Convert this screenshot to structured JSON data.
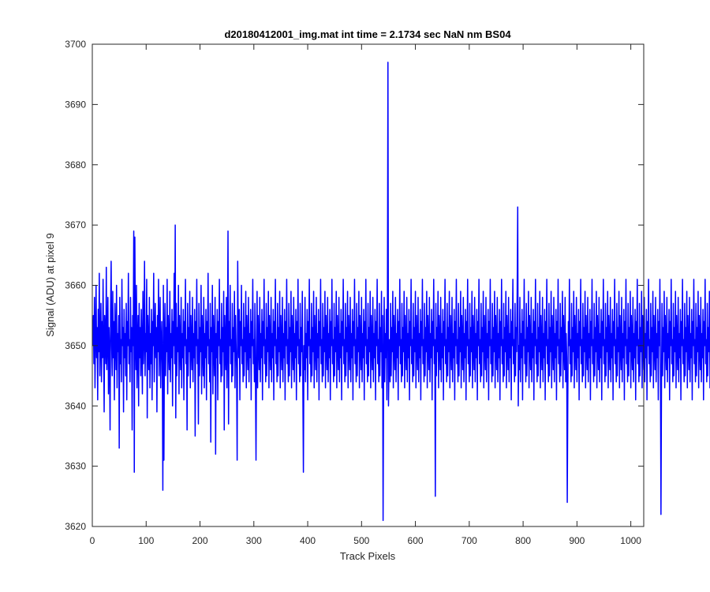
{
  "chart_data": {
    "type": "line",
    "title": "d20180412001_img.mat int time = 2.1734 sec  NaN nm BS04",
    "xlabel": "Track Pixels",
    "ylabel": "Signal (ADU) at pixel 9",
    "xlim": [
      0,
      1024
    ],
    "ylim": [
      3620,
      3700
    ],
    "xticks": [
      0,
      100,
      200,
      300,
      400,
      500,
      600,
      700,
      800,
      900,
      1000
    ],
    "yticks": [
      3620,
      3630,
      3640,
      3650,
      3660,
      3670,
      3680,
      3690,
      3700
    ],
    "grid": false,
    "legend": "none",
    "series_color": "#0000ff",
    "series": [
      {
        "x_start": 1,
        "x_step": 1,
        "values": [
          3650,
          3655,
          3647,
          3658,
          3643,
          3652,
          3660,
          3648,
          3653,
          3641,
          3656,
          3649,
          3662,
          3645,
          3651,
          3657,
          3644,
          3654,
          3648,
          3661,
          3650,
          3639,
          3655,
          3652,
          3647,
          3663,
          3646,
          3651,
          3658,
          3642,
          3653,
          3649,
          3636,
          3656,
          3664,
          3650,
          3645,
          3659,
          3648,
          3654,
          3641,
          3657,
          3651,
          3646,
          3660,
          3643,
          3652,
          3649,
          3655,
          3633,
          3658,
          3647,
          3651,
          3644,
          3661,
          3650,
          3653,
          3639,
          3656,
          3648,
          3652,
          3645,
          3657,
          3641,
          3654,
          3650,
          3662,
          3647,
          3651,
          3644,
          3658,
          3649,
          3653,
          3636,
          3655,
          3650,
          3669,
          3629,
          3668,
          3652,
          3646,
          3660,
          3643,
          3651,
          3655,
          3640,
          3657,
          3648,
          3653,
          3645,
          3656,
          3650,
          3642,
          3659,
          3647,
          3651,
          3664,
          3645,
          3652,
          3649,
          3661,
          3638,
          3655,
          3650,
          3646,
          3658,
          3643,
          3652,
          3647,
          3656,
          3641,
          3654,
          3650,
          3662,
          3644,
          3651,
          3657,
          3648,
          3653,
          3639,
          3655,
          3649,
          3661,
          3645,
          3652,
          3658,
          3643,
          3650,
          3654,
          3647,
          3626,
          3660,
          3631,
          3651,
          3657,
          3645,
          3653,
          3649,
          3661,
          3642,
          3655,
          3650,
          3646,
          3659,
          3644,
          3652,
          3648,
          3656,
          3640,
          3654,
          3650,
          3662,
          3647,
          3670,
          3638,
          3657,
          3645,
          3653,
          3649,
          3660,
          3642,
          3655,
          3650,
          3646,
          3658,
          3643,
          3652,
          3648,
          3656,
          3641,
          3654,
          3650,
          3661,
          3647,
          3651,
          3636,
          3657,
          3645,
          3653,
          3649,
          3659,
          3643,
          3655,
          3650,
          3646,
          3658,
          3644,
          3652,
          3648,
          3656,
          3635,
          3654,
          3650,
          3661,
          3647,
          3651,
          3637,
          3657,
          3645,
          3653,
          3649,
          3660,
          3642,
          3655,
          3650,
          3645,
          3658,
          3643,
          3652,
          3648,
          3656,
          3641,
          3654,
          3650,
          3662,
          3647,
          3651,
          3644,
          3657,
          3634,
          3653,
          3649,
          3660,
          3642,
          3655,
          3650,
          3645,
          3658,
          3632,
          3652,
          3648,
          3656,
          3641,
          3654,
          3650,
          3661,
          3647,
          3651,
          3644,
          3657,
          3645,
          3653,
          3649,
          3659,
          3636,
          3655,
          3650,
          3646,
          3658,
          3643,
          3652,
          3669,
          3637,
          3654,
          3650,
          3660,
          3647,
          3651,
          3644,
          3657,
          3645,
          3653,
          3649,
          3659,
          3643,
          3655,
          3650,
          3646,
          3631,
          3664,
          3652,
          3648,
          3656,
          3641,
          3654,
          3650,
          3660,
          3647,
          3651,
          3644,
          3657,
          3645,
          3653,
          3649,
          3659,
          3643,
          3655,
          3650,
          3646,
          3658,
          3644,
          3652,
          3648,
          3656,
          3641,
          3654,
          3650,
          3661,
          3647,
          3651,
          3644,
          3657,
          3645,
          3631,
          3649,
          3659,
          3643,
          3655,
          3650,
          3646,
          3658,
          3644,
          3652,
          3648,
          3656,
          3641,
          3654,
          3650,
          3661,
          3647,
          3651,
          3644,
          3657,
          3645,
          3653,
          3649,
          3659,
          3643,
          3655,
          3650,
          3646,
          3658,
          3644,
          3652,
          3648,
          3656,
          3641,
          3654,
          3650,
          3661,
          3647,
          3651,
          3644,
          3657,
          3645,
          3653,
          3649,
          3659,
          3643,
          3655,
          3650,
          3646,
          3658,
          3644,
          3652,
          3648,
          3656,
          3641,
          3654,
          3650,
          3661,
          3647,
          3651,
          3644,
          3657,
          3645,
          3653,
          3649,
          3659,
          3643,
          3655,
          3650,
          3646,
          3658,
          3644,
          3652,
          3648,
          3656,
          3641,
          3654,
          3650,
          3661,
          3647,
          3651,
          3644,
          3657,
          3645,
          3653,
          3649,
          3659,
          3643,
          3629,
          3650,
          3646,
          3658,
          3644,
          3652,
          3648,
          3656,
          3641,
          3654,
          3650,
          3661,
          3647,
          3651,
          3644,
          3657,
          3645,
          3653,
          3649,
          3659,
          3643,
          3655,
          3650,
          3646,
          3658,
          3644,
          3652,
          3648,
          3656,
          3641,
          3654,
          3650,
          3661,
          3647,
          3651,
          3644,
          3657,
          3645,
          3653,
          3649,
          3659,
          3643,
          3655,
          3650,
          3646,
          3658,
          3644,
          3652,
          3648,
          3656,
          3641,
          3654,
          3650,
          3661,
          3647,
          3651,
          3644,
          3657,
          3645,
          3653,
          3649,
          3659,
          3643,
          3655,
          3650,
          3646,
          3658,
          3644,
          3652,
          3648,
          3656,
          3641,
          3654,
          3650,
          3661,
          3647,
          3651,
          3644,
          3657,
          3645,
          3653,
          3649,
          3659,
          3643,
          3655,
          3650,
          3646,
          3658,
          3644,
          3652,
          3648,
          3656,
          3641,
          3654,
          3650,
          3661,
          3647,
          3651,
          3644,
          3657,
          3645,
          3653,
          3649,
          3659,
          3643,
          3655,
          3650,
          3646,
          3658,
          3644,
          3652,
          3648,
          3656,
          3641,
          3654,
          3650,
          3661,
          3647,
          3651,
          3644,
          3657,
          3645,
          3653,
          3649,
          3659,
          3643,
          3655,
          3650,
          3646,
          3658,
          3644,
          3652,
          3648,
          3656,
          3641,
          3654,
          3650,
          3661,
          3647,
          3651,
          3644,
          3657,
          3645,
          3653,
          3649,
          3659,
          3643,
          3655,
          3621,
          3646,
          3658,
          3644,
          3652,
          3648,
          3656,
          3641,
          3654,
          3697,
          3640,
          3647,
          3651,
          3644,
          3657,
          3645,
          3653,
          3649,
          3659,
          3643,
          3655,
          3650,
          3646,
          3658,
          3644,
          3652,
          3648,
          3656,
          3641,
          3654,
          3650,
          3661,
          3647,
          3651,
          3644,
          3657,
          3645,
          3653,
          3649,
          3659,
          3643,
          3655,
          3650,
          3646,
          3658,
          3644,
          3652,
          3648,
          3656,
          3641,
          3654,
          3650,
          3661,
          3647,
          3651,
          3644,
          3657,
          3645,
          3653,
          3649,
          3659,
          3643,
          3655,
          3650,
          3646,
          3658,
          3644,
          3652,
          3648,
          3656,
          3641,
          3654,
          3650,
          3661,
          3647,
          3651,
          3644,
          3657,
          3645,
          3653,
          3649,
          3659,
          3643,
          3655,
          3650,
          3646,
          3658,
          3644,
          3652,
          3648,
          3656,
          3641,
          3654,
          3650,
          3661,
          3647,
          3651,
          3625,
          3657,
          3645,
          3653,
          3649,
          3659,
          3643,
          3655,
          3650,
          3646,
          3658,
          3644,
          3652,
          3648,
          3656,
          3641,
          3654,
          3650,
          3661,
          3647,
          3651,
          3644,
          3657,
          3645,
          3653,
          3649,
          3659,
          3643,
          3655,
          3650,
          3646,
          3658,
          3644,
          3652,
          3648,
          3656,
          3641,
          3654,
          3650,
          3661,
          3647,
          3651,
          3644,
          3657,
          3645,
          3653,
          3649,
          3659,
          3643,
          3655,
          3650,
          3646,
          3658,
          3644,
          3652,
          3648,
          3656,
          3641,
          3654,
          3650,
          3661,
          3647,
          3651,
          3644,
          3657,
          3645,
          3653,
          3649,
          3659,
          3643,
          3655,
          3650,
          3646,
          3658,
          3644,
          3652,
          3648,
          3656,
          3641,
          3654,
          3650,
          3661,
          3647,
          3651,
          3644,
          3657,
          3645,
          3653,
          3649,
          3659,
          3643,
          3655,
          3650,
          3646,
          3658,
          3644,
          3652,
          3648,
          3656,
          3641,
          3654,
          3650,
          3661,
          3647,
          3651,
          3644,
          3657,
          3645,
          3653,
          3649,
          3659,
          3643,
          3655,
          3650,
          3646,
          3658,
          3644,
          3652,
          3648,
          3656,
          3641,
          3654,
          3650,
          3661,
          3647,
          3651,
          3644,
          3657,
          3645,
          3653,
          3649,
          3659,
          3643,
          3655,
          3650,
          3646,
          3658,
          3644,
          3652,
          3648,
          3656,
          3641,
          3654,
          3650,
          3661,
          3647,
          3651,
          3644,
          3657,
          3645,
          3653,
          3649,
          3659,
          3673,
          3640,
          3650,
          3646,
          3658,
          3644,
          3652,
          3648,
          3656,
          3641,
          3654,
          3650,
          3661,
          3647,
          3651,
          3644,
          3657,
          3645,
          3653,
          3649,
          3659,
          3643,
          3655,
          3650,
          3646,
          3658,
          3644,
          3652,
          3648,
          3656,
          3641,
          3654,
          3650,
          3661,
          3647,
          3651,
          3644,
          3657,
          3645,
          3653,
          3649,
          3659,
          3643,
          3655,
          3650,
          3646,
          3658,
          3644,
          3652,
          3648,
          3656,
          3641,
          3654,
          3650,
          3661,
          3647,
          3651,
          3644,
          3657,
          3645,
          3653,
          3649,
          3659,
          3643,
          3655,
          3650,
          3646,
          3658,
          3644,
          3652,
          3648,
          3656,
          3641,
          3654,
          3650,
          3661,
          3647,
          3651,
          3644,
          3657,
          3645,
          3653,
          3649,
          3659,
          3643,
          3655,
          3650,
          3646,
          3658,
          3644,
          3652,
          3648,
          3624,
          3641,
          3654,
          3650,
          3661,
          3647,
          3651,
          3644,
          3657,
          3645,
          3653,
          3649,
          3659,
          3643,
          3655,
          3650,
          3646,
          3658,
          3644,
          3652,
          3648,
          3656,
          3641,
          3654,
          3650,
          3661,
          3647,
          3651,
          3644,
          3657,
          3645,
          3653,
          3649,
          3659,
          3643,
          3655,
          3650,
          3646,
          3658,
          3644,
          3652,
          3648,
          3656,
          3641,
          3654,
          3650,
          3661,
          3647,
          3651,
          3644,
          3657,
          3645,
          3653,
          3649,
          3659,
          3643,
          3655,
          3650,
          3646,
          3658,
          3644,
          3652,
          3648,
          3656,
          3641,
          3654,
          3650,
          3661,
          3647,
          3651,
          3644,
          3657,
          3645,
          3653,
          3649,
          3659,
          3643,
          3655,
          3650,
          3646,
          3658,
          3644,
          3652,
          3648,
          3656,
          3641,
          3654,
          3650,
          3661,
          3647,
          3651,
          3644,
          3657,
          3645,
          3653,
          3649,
          3659,
          3643,
          3655,
          3650,
          3646,
          3658,
          3644,
          3652,
          3648,
          3656,
          3641,
          3654,
          3650,
          3661,
          3647,
          3651,
          3644,
          3657,
          3645,
          3653,
          3649,
          3659,
          3643,
          3655,
          3650,
          3646,
          3658,
          3644,
          3652,
          3648,
          3656,
          3641,
          3654,
          3650,
          3661,
          3647,
          3651,
          3644,
          3657,
          3645,
          3653,
          3649,
          3659,
          3643,
          3655,
          3650,
          3646,
          3658,
          3644,
          3652,
          3648,
          3656,
          3641,
          3654,
          3650,
          3661,
          3647,
          3651,
          3644,
          3657,
          3645,
          3653,
          3649,
          3659,
          3643,
          3655,
          3650,
          3646,
          3658,
          3644,
          3652,
          3648,
          3656,
          3641,
          3654,
          3650,
          3661,
          3647,
          3622,
          3644,
          3657,
          3645,
          3653,
          3649,
          3659,
          3643,
          3655,
          3650,
          3646,
          3658,
          3644,
          3652,
          3648,
          3656,
          3641,
          3654,
          3650,
          3661,
          3647,
          3651,
          3644,
          3657,
          3645,
          3653,
          3649,
          3659,
          3643,
          3655,
          3650,
          3646,
          3658,
          3644,
          3652,
          3648,
          3656,
          3641,
          3654,
          3650,
          3661,
          3647,
          3651,
          3644,
          3657,
          3645,
          3653,
          3649,
          3659,
          3643,
          3655,
          3650,
          3646,
          3658,
          3644,
          3652,
          3648,
          3656,
          3641,
          3654,
          3650,
          3661,
          3647,
          3651,
          3644,
          3657,
          3645,
          3653,
          3649,
          3659,
          3643,
          3655,
          3650,
          3646,
          3658,
          3644,
          3652,
          3648,
          3656,
          3641,
          3654,
          3650,
          3661,
          3647,
          3651,
          3644,
          3657,
          3645,
          3653,
          3649,
          3659,
          3643,
          3655
        ]
      }
    ]
  }
}
